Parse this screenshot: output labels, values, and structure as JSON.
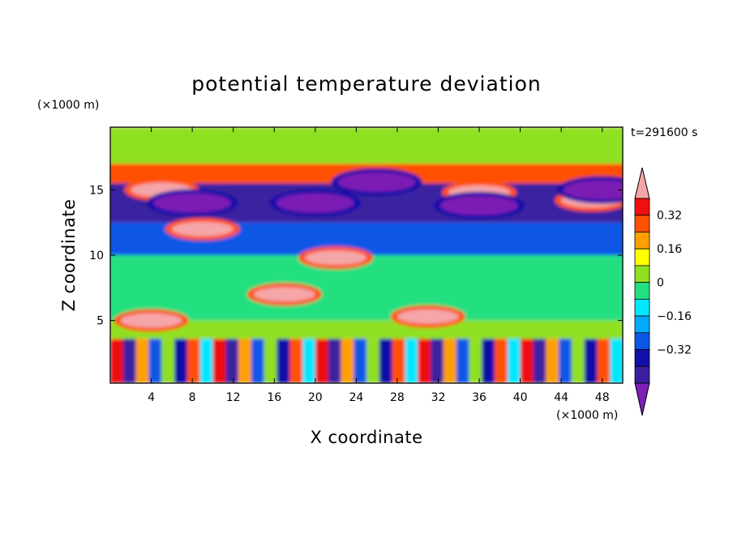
{
  "chart_data": {
    "type": "heatmap",
    "title": "potential temperature deviation",
    "time_label": "t=291600 s",
    "xlabel": "X coordinate",
    "ylabel": "Z coordinate",
    "x_unit": "(×1000 m)",
    "y_unit": "(×1000 m)",
    "xlim": [
      0,
      50
    ],
    "ylim": [
      0.2,
      19.8
    ],
    "x_ticks": [
      "4",
      "8",
      "12",
      "16",
      "20",
      "24",
      "28",
      "32",
      "36",
      "40",
      "44",
      "48"
    ],
    "y_ticks": [
      "5",
      "10",
      "15"
    ],
    "colorbar": {
      "levels": [
        -0.48,
        -0.4,
        -0.32,
        -0.24,
        -0.16,
        -0.08,
        0,
        0.08,
        0.16,
        0.24,
        0.32,
        0.4,
        0.48
      ],
      "labels": [
        "0.32",
        "0.16",
        "0",
        "−0.16",
        "−0.32"
      ],
      "colors": [
        "#7b1fb5",
        "#3a20a0",
        "#1010a8",
        "#0a57e6",
        "#00aaff",
        "#00e8ff",
        "#22e080",
        "#90e020",
        "#ffff00",
        "#ffa000",
        "#ff5000",
        "#ee1010",
        "#f5a6a8"
      ]
    },
    "bands": [
      {
        "z": [
          0.2,
          3.6
        ],
        "description_value": "alternating -0.4 to 0.4"
      },
      {
        "z": [
          3.6,
          5.0
        ],
        "value": 0.1
      },
      {
        "z": [
          5.0,
          10.0
        ],
        "value": 0.0
      },
      {
        "z": [
          10.0,
          12.5
        ],
        "value": -0.25
      },
      {
        "z": [
          12.5,
          15.5
        ],
        "value": -0.4
      },
      {
        "z": [
          15.5,
          17.0
        ],
        "value": 0.3
      },
      {
        "z": [
          17.0,
          19.8
        ],
        "value": 0.05
      }
    ],
    "features": [
      {
        "x": 9,
        "z": 12.0,
        "value": 0.48
      },
      {
        "x": 22,
        "z": 9.8,
        "value": 0.48
      },
      {
        "x": 17,
        "z": 7.0,
        "value": 0.48
      },
      {
        "x": 4,
        "z": 5.0,
        "value": 0.48
      },
      {
        "x": 31,
        "z": 5.3,
        "value": 0.48
      },
      {
        "x": 5,
        "z": 15.0,
        "value": 0.48
      },
      {
        "x": 36,
        "z": 14.8,
        "value": 0.48
      },
      {
        "x": 47,
        "z": 14.2,
        "value": 0.48
      },
      {
        "x": 8,
        "z": 14.0,
        "value": -0.48
      },
      {
        "x": 20,
        "z": 14.0,
        "value": -0.48
      },
      {
        "x": 36,
        "z": 13.8,
        "value": -0.48
      },
      {
        "x": 26,
        "z": 15.6,
        "value": -0.48
      },
      {
        "x": 48,
        "z": 15.0,
        "value": -0.48
      }
    ]
  }
}
